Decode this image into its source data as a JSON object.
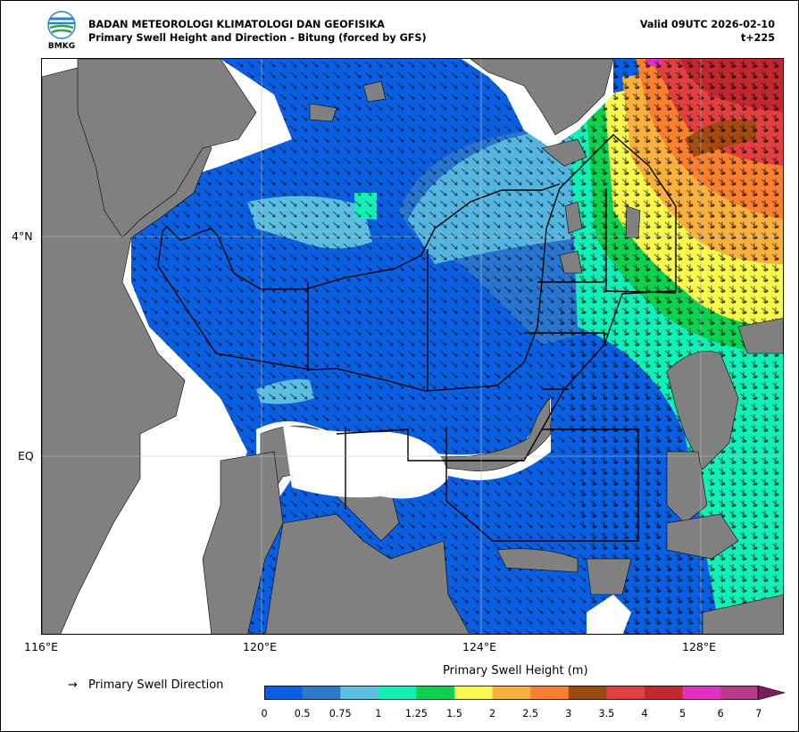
{
  "header": {
    "org": "BADAN METEOROLOGI KLIMATOLOGI DAN GEOFISIKA",
    "product": "Primary Swell Height and Direction - Bitung (forced by GFS)",
    "valid": "Valid 09UTC 2026-02-10",
    "step": "t+225",
    "logo_text": "BMKG"
  },
  "axes": {
    "lat_labels": [
      "4°N",
      "EQ"
    ],
    "lon_labels": [
      "116°E",
      "120°E",
      "124°E",
      "128°E"
    ]
  },
  "legend": {
    "arrow_glyph": "→",
    "direction_label": "Primary Swell Direction"
  },
  "colorbar": {
    "title": "Primary Swell Height (m)",
    "ticks": [
      "0",
      "0.5",
      "0.75",
      "1",
      "1.25",
      "1.5",
      "2",
      "2.5",
      "3",
      "3.5",
      "4",
      "5",
      "6",
      "7"
    ],
    "colors": [
      "#0a5fe0",
      "#2f78c8",
      "#5bbde0",
      "#12f0b8",
      "#10d050",
      "#f8f850",
      "#f8b040",
      "#f88030",
      "#9b4a10",
      "#e04040",
      "#c02830",
      "#e030c0",
      "#b83c8c"
    ],
    "over_color": "#7a1e5a"
  },
  "colors": {
    "land": "#808080",
    "sea_low": "#0a5fe0",
    "no_data": "#ffffff"
  }
}
